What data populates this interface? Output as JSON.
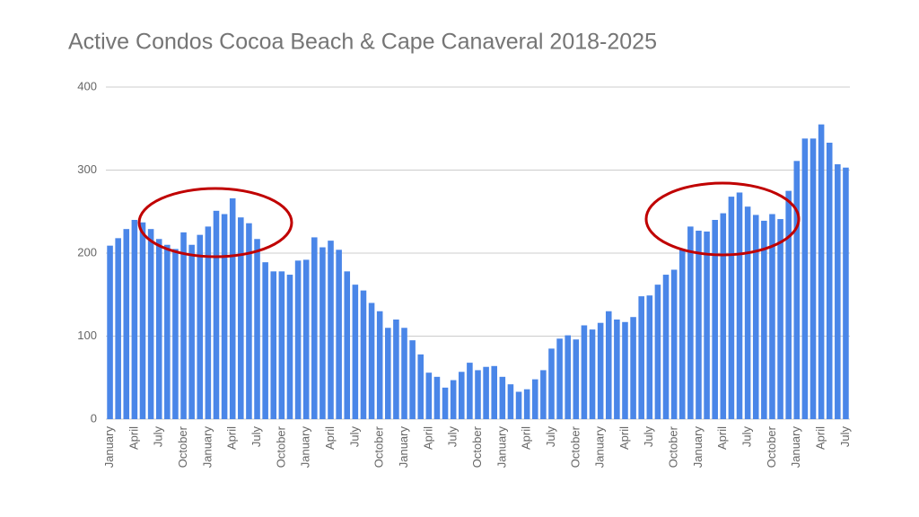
{
  "chart_data": {
    "type": "bar",
    "title": "Active Condos Cocoa Beach & Cape Canaveral 2018-2025",
    "categories": [
      "January",
      null,
      null,
      "April",
      null,
      null,
      "July",
      null,
      null,
      "October",
      null,
      null,
      "January",
      null,
      null,
      "April",
      null,
      null,
      "July",
      null,
      null,
      "October",
      null,
      null,
      "January",
      null,
      null,
      "April",
      null,
      null,
      "July",
      null,
      null,
      "October",
      null,
      null,
      "January",
      null,
      null,
      "April",
      null,
      null,
      "July",
      null,
      null,
      "October",
      null,
      null,
      "January",
      null,
      null,
      "April",
      null,
      null,
      "July",
      null,
      null,
      "October",
      null,
      null,
      "January",
      null,
      null,
      "April",
      null,
      null,
      "July",
      null,
      null,
      "October",
      null,
      null,
      "January",
      null,
      null,
      "April",
      null,
      null,
      "July",
      null,
      null,
      "October",
      null,
      null,
      "January",
      null,
      null,
      "April",
      null,
      null,
      "July"
    ],
    "values": [
      209,
      218,
      229,
      240,
      237,
      229,
      217,
      210,
      205,
      225,
      210,
      222,
      232,
      251,
      247,
      266,
      243,
      236,
      217,
      189,
      178,
      178,
      174,
      191,
      192,
      219,
      207,
      215,
      204,
      178,
      162,
      155,
      140,
      130,
      110,
      120,
      110,
      95,
      78,
      56,
      51,
      38,
      47,
      57,
      68,
      59,
      63,
      64,
      51,
      42,
      33,
      36,
      48,
      59,
      85,
      97,
      101,
      96,
      113,
      108,
      116,
      130,
      120,
      117,
      123,
      148,
      149,
      162,
      174,
      180,
      205,
      232,
      227,
      226,
      240,
      248,
      268,
      273,
      256,
      246,
      239,
      247,
      241,
      275,
      311,
      338,
      338,
      355,
      333,
      307,
      303
    ],
    "color": "#4a86e8",
    "ylim": [
      0,
      400
    ],
    "yticks": [
      0,
      100,
      200,
      300,
      400
    ],
    "grid": true
  }
}
